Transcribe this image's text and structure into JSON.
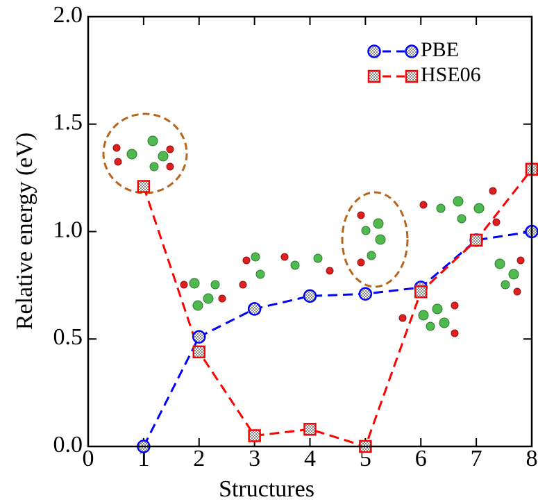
{
  "chart_data": {
    "type": "line",
    "x_label": "Structures",
    "y_label": "Relative energy (eV)",
    "x": [
      1,
      2,
      3,
      4,
      5,
      6,
      7,
      8
    ],
    "series": [
      {
        "name": "PBE",
        "color": "#0000ff",
        "marker": "circle",
        "values": [
          0.0,
          0.51,
          0.64,
          0.7,
          0.71,
          0.74,
          0.96,
          1.0
        ]
      },
      {
        "name": "HSE06",
        "color": "#ff0000",
        "marker": "square",
        "values": [
          1.21,
          0.44,
          0.05,
          0.08,
          0.0,
          0.72,
          0.96,
          1.29
        ]
      }
    ],
    "xlim": [
      0,
      8
    ],
    "xticks": [
      0,
      1,
      2,
      3,
      4,
      5,
      6,
      7,
      8
    ],
    "ylim": [
      0,
      2
    ],
    "yticks": [
      {
        "value": 0,
        "label": "0.0"
      },
      0.5,
      {
        "value": 1,
        "label": "1.0"
      },
      1.5,
      {
        "value": 2,
        "label": "2.0"
      }
    ],
    "legend": "upper right"
  }
}
